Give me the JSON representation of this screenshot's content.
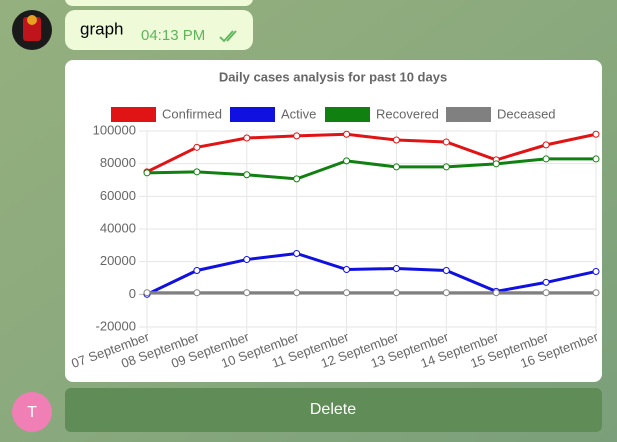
{
  "message": {
    "text": "graph",
    "time": "04:13 PM"
  },
  "avatar_letter": "T",
  "button": "Delete",
  "chart_data": {
    "type": "line",
    "title": "Daily cases analysis for past 10 days",
    "categories": [
      "07 September",
      "08 September",
      "09 September",
      "10 September",
      "11 September",
      "12 September",
      "13 September",
      "14 September",
      "15 September",
      "16 September"
    ],
    "series": [
      {
        "name": "Confirmed",
        "color": "#e01414",
        "values": [
          75000,
          90000,
          95700,
          97000,
          98000,
          94500,
          93300,
          82300,
          91500,
          98000
        ]
      },
      {
        "name": "Active",
        "color": "#1010e0",
        "values": [
          0,
          14600,
          21300,
          25000,
          15200,
          15800,
          14600,
          1800,
          7300,
          14000
        ]
      },
      {
        "name": "Recovered",
        "color": "#108010",
        "values": [
          74400,
          75000,
          73200,
          70700,
          81700,
          78000,
          78000,
          79900,
          82900,
          82900
        ]
      },
      {
        "name": "Deceased",
        "color": "#808080",
        "values": [
          1000,
          1000,
          1000,
          1000,
          1000,
          1000,
          1000,
          1000,
          1000,
          1000
        ]
      }
    ],
    "ylim": [
      -20000,
      100000
    ],
    "yticks": [
      -20000,
      0,
      20000,
      40000,
      60000,
      80000,
      100000
    ],
    "grid": true,
    "legend": "top"
  }
}
